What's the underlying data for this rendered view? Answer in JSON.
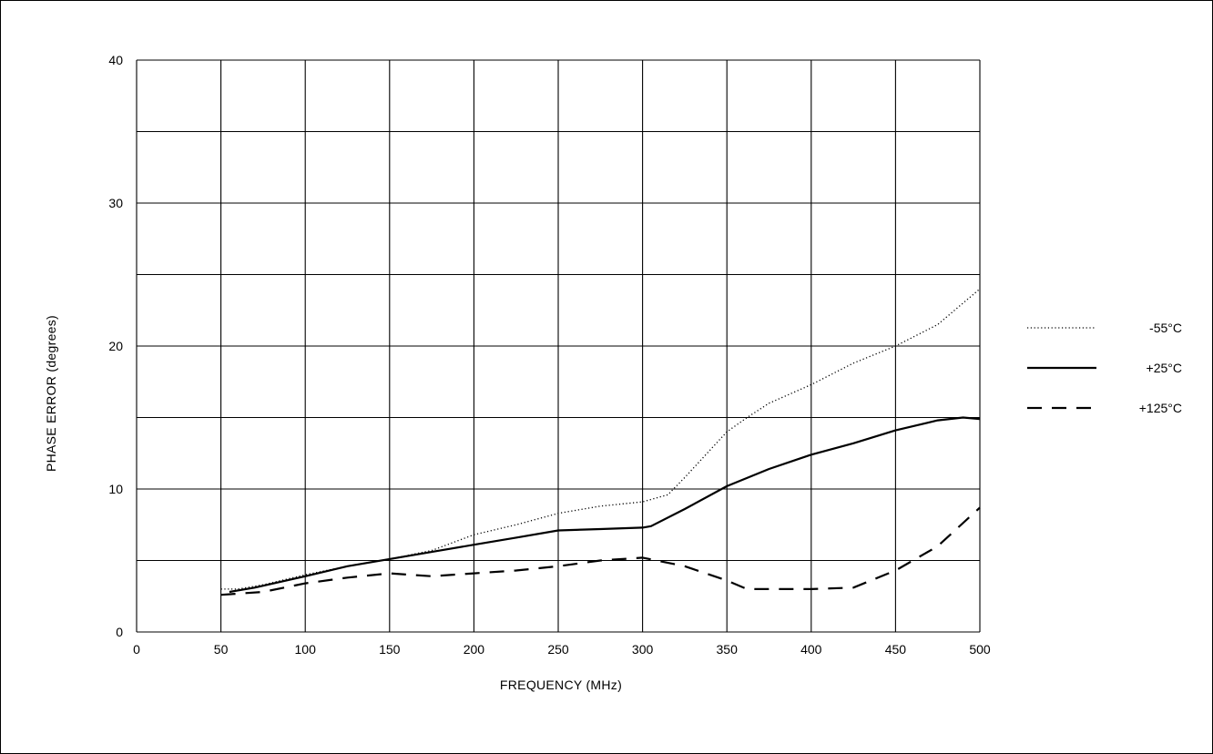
{
  "chart_data": {
    "type": "line",
    "title": "",
    "xlabel": "FREQUENCY (MHz)",
    "ylabel": "PHASE ERROR (degrees)",
    "xlim": [
      0,
      500
    ],
    "ylim": [
      0,
      40
    ],
    "x_ticks": [
      0,
      50,
      100,
      150,
      200,
      250,
      300,
      350,
      400,
      450,
      500
    ],
    "y_ticks": [
      0,
      10,
      20,
      30,
      40
    ],
    "y_grid_step": 5,
    "grid": true,
    "legend_position": "right",
    "series": [
      {
        "name": "-55°C",
        "style": "dotted",
        "x": [
          50,
          60,
          75,
          100,
          125,
          150,
          175,
          200,
          225,
          250,
          275,
          300,
          315,
          325,
          350,
          362,
          375,
          400,
          425,
          450,
          475,
          500
        ],
        "y": [
          3.0,
          3.0,
          3.3,
          4.0,
          4.6,
          5.1,
          5.7,
          6.8,
          7.5,
          8.3,
          8.8,
          9.1,
          9.6,
          10.8,
          14.0,
          15.0,
          16.0,
          17.3,
          18.8,
          20.0,
          21.5,
          24.0
        ]
      },
      {
        "name": "+25°C",
        "style": "solid",
        "x": [
          55,
          70,
          100,
          125,
          150,
          175,
          200,
          225,
          250,
          275,
          300,
          305,
          325,
          350,
          375,
          400,
          425,
          450,
          475,
          490,
          500
        ],
        "y": [
          2.8,
          3.1,
          3.9,
          4.6,
          5.1,
          5.6,
          6.1,
          6.6,
          7.1,
          7.2,
          7.3,
          7.4,
          8.6,
          10.2,
          11.4,
          12.4,
          13.2,
          14.1,
          14.8,
          15.0,
          14.9
        ]
      },
      {
        "name": "+125°C",
        "style": "dashed",
        "x": [
          50,
          75,
          100,
          125,
          150,
          175,
          200,
          225,
          250,
          275,
          300,
          325,
          350,
          362,
          375,
          400,
          425,
          450,
          475,
          500
        ],
        "y": [
          2.6,
          2.8,
          3.4,
          3.8,
          4.1,
          3.9,
          4.1,
          4.3,
          4.6,
          5.0,
          5.2,
          4.6,
          3.6,
          3.0,
          3.0,
          3.0,
          3.1,
          4.3,
          6.0,
          8.7
        ]
      }
    ]
  }
}
